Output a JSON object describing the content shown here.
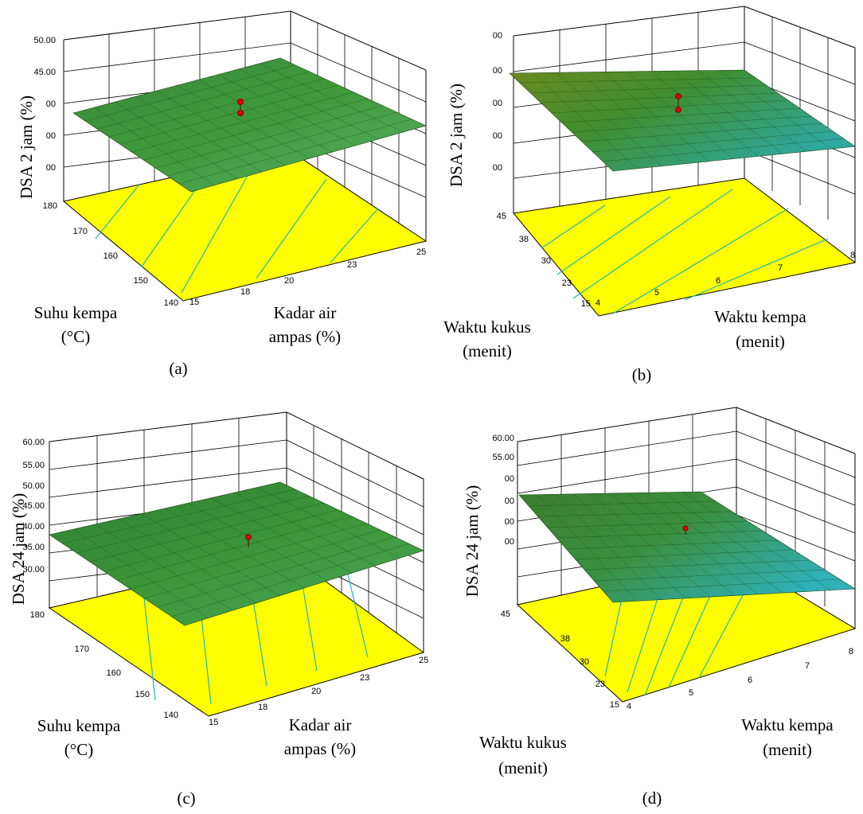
{
  "chart_data": [
    {
      "type": "surface",
      "caption": "(a)",
      "zlabel": "DSA  2 jam  (%)",
      "zticks": [
        "50.00",
        "45.00",
        "00",
        "00",
        "00"
      ],
      "ylabel_line1": "Suhu kempa",
      "ylabel_line2": "(°C)",
      "yticks": [
        "180",
        "170",
        "160",
        "150",
        "140"
      ],
      "xlabel_line1": "Kadar air",
      "xlabel_line2": "ampas (%)",
      "xticks": [
        "15",
        "18",
        "20",
        "23",
        "25"
      ],
      "colors": {
        "surface": "#3f9a3a",
        "floor": "#ffff00",
        "contour": "#19b9b4",
        "point": "#e00000"
      }
    },
    {
      "type": "surface",
      "caption": "(b)",
      "zlabel": "DSA  2 jam  (%)",
      "zticks": [
        "00",
        "00",
        "00",
        "00",
        "00"
      ],
      "ylabel_line1": "Waktu kukus",
      "ylabel_line2": "(menit)",
      "yticks": [
        "45",
        "38",
        "30",
        "23",
        "15"
      ],
      "xlabel_line1": "Waktu kempa",
      "xlabel_line2": "(menit)",
      "xticks": [
        "4",
        "5",
        "6",
        "7",
        "8"
      ],
      "colors": {
        "surface": "#3f9a3a",
        "floor": "#ffff00",
        "contour": "#19b9b4",
        "point": "#e00000"
      }
    },
    {
      "type": "surface",
      "caption": "(c)",
      "zlabel": "DSA  24 jam (%)",
      "zticks": [
        "60.00",
        "55.00",
        "50.00",
        "45.00",
        "40.00",
        "35.00",
        "30.00"
      ],
      "ylabel_line1": "Suhu kempa",
      "ylabel_line2": "(°C)",
      "yticks": [
        "180",
        "170",
        "160",
        "150",
        "140"
      ],
      "xlabel_line1": "Kadar air",
      "xlabel_line2": "ampas (%)",
      "xticks": [
        "15",
        "18",
        "20",
        "23",
        "25"
      ],
      "colors": {
        "surface": "#3f9a3a",
        "floor": "#ffff00",
        "contour": "#19b9b4",
        "point": "#e00000"
      }
    },
    {
      "type": "surface",
      "caption": "(d)",
      "zlabel": "DSA  24 jam (%)",
      "zticks": [
        "60.00",
        "55.00",
        "00",
        "00",
        "00",
        "00"
      ],
      "ylabel_line1": "Waktu kukus",
      "ylabel_line2": "(menit)",
      "yticks": [
        "45",
        "38",
        "30",
        "23",
        "15"
      ],
      "xlabel_line1": "Waktu kempa",
      "xlabel_line2": "(menit)",
      "xticks": [
        "4",
        "5",
        "6",
        "7",
        "8"
      ],
      "colors": {
        "surface": "#3f9a3a",
        "floor": "#ffff00",
        "contour": "#19b9b4",
        "point": "#e00000"
      }
    }
  ]
}
